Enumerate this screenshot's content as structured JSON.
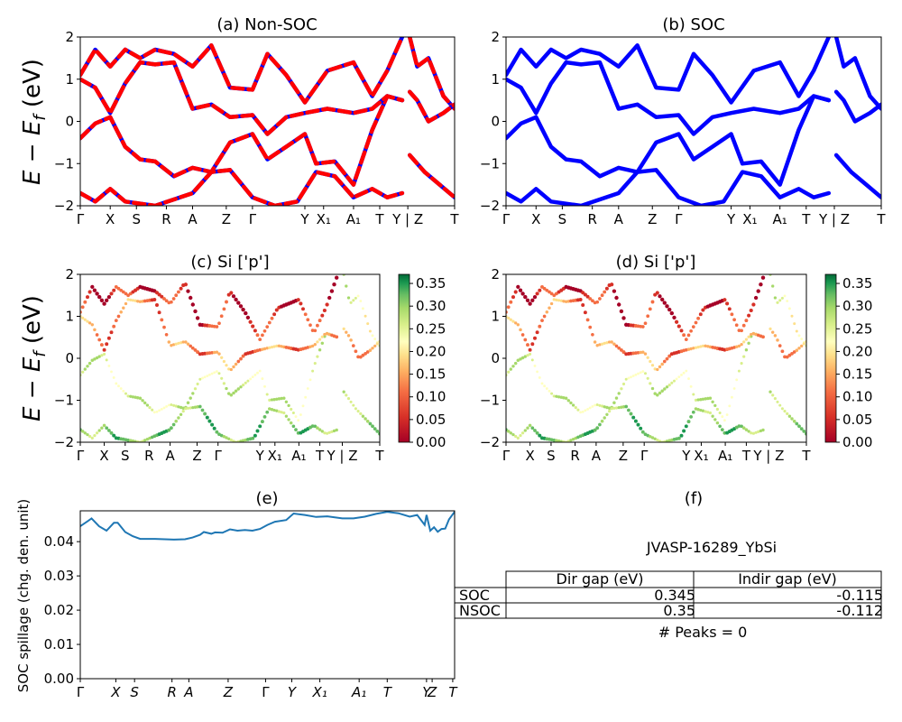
{
  "common": {
    "kpath_a": [
      "Γ",
      "X",
      "S",
      "R",
      "A",
      "Z",
      "Γ",
      "Y",
      "X₁",
      "A₁",
      "T",
      "Y | Z",
      "T"
    ],
    "kpath_c": [
      "Γ",
      "X",
      "S",
      "R",
      "A",
      "Z",
      "Γ",
      "Y",
      "X₁",
      "A₁",
      "T",
      "Y | Z",
      "T"
    ],
    "kpath_e": [
      "Γ",
      "X",
      "S",
      "R",
      "A",
      "Z",
      "Γ",
      "Y",
      "X₁",
      "A₁",
      "T",
      "Y",
      "Z",
      "T"
    ],
    "y_ticks_band": [
      "−2",
      "−1",
      "0",
      "1",
      "2"
    ],
    "colorbar_ticks": [
      "0.00",
      "0.05",
      "0.10",
      "0.15",
      "0.20",
      "0.25",
      "0.30",
      "0.35"
    ],
    "ylabel_band": "E − E_f (eV)"
  },
  "panel_a": {
    "title": "(a) Non-SOC"
  },
  "panel_b": {
    "title": "(b) SOC"
  },
  "panel_c": {
    "title": "(c)  Si ['p']"
  },
  "panel_d": {
    "title": "(d) Si ['p']"
  },
  "panel_e": {
    "title": "(e)",
    "ylabel": "SOC spillage (chg. den. unit)",
    "y_ticks": [
      "0.00",
      "0.01",
      "0.02",
      "0.03",
      "0.04"
    ]
  },
  "panel_f": {
    "title": "(f)",
    "material": "JVASP-16289_YbSi",
    "col_headers": [
      "Dir gap (eV)",
      "Indir gap (eV)"
    ],
    "rows": [
      {
        "label": "SOC",
        "dir": "0.345",
        "indir": "-0.115"
      },
      {
        "label": "NSOC",
        "dir": "0.35",
        "indir": "-0.112"
      }
    ],
    "peaks": "# Peaks = 0"
  },
  "chart_data": [
    {
      "type": "line",
      "panel": "a",
      "title": "(a) Non-SOC",
      "ylabel": "E − E_f (eV)",
      "ylim": [
        -2,
        2
      ],
      "x_tick_labels": [
        "Γ",
        "X",
        "S",
        "R",
        "A",
        "Z",
        "Γ",
        "Y",
        "X₁",
        "A₁",
        "T",
        "Y | Z",
        "T"
      ],
      "x_tick_positions": [
        0,
        0.08,
        0.15,
        0.23,
        0.3,
        0.39,
        0.46,
        0.6,
        0.65,
        0.73,
        0.8,
        0.875,
        1.0
      ],
      "series_style": "red solid with blue dashes (spin up/down overlap)",
      "series": [
        {
          "values": [
            [
              0,
              -0.4
            ],
            [
              0.04,
              -0.05
            ],
            [
              0.08,
              0.1
            ],
            [
              0.12,
              -0.6
            ],
            [
              0.16,
              -0.9
            ],
            [
              0.2,
              -0.95
            ],
            [
              0.25,
              -1.3
            ],
            [
              0.3,
              -1.1
            ],
            [
              0.35,
              -1.2
            ],
            [
              0.4,
              -0.5
            ],
            [
              0.46,
              -0.3
            ],
            [
              0.5,
              -0.9
            ],
            [
              0.55,
              -0.6
            ],
            [
              0.6,
              -0.3
            ],
            [
              0.63,
              -1.0
            ],
            [
              0.68,
              -0.95
            ],
            [
              0.73,
              -1.5
            ],
            [
              0.78,
              -0.2
            ],
            [
              0.82,
              0.6
            ],
            [
              0.86,
              0.5
            ]
          ]
        },
        {
          "values": [
            [
              0,
              1.0
            ],
            [
              0.04,
              0.8
            ],
            [
              0.08,
              0.2
            ],
            [
              0.12,
              0.9
            ],
            [
              0.16,
              1.4
            ],
            [
              0.2,
              1.35
            ],
            [
              0.25,
              1.4
            ],
            [
              0.3,
              0.3
            ],
            [
              0.35,
              0.4
            ],
            [
              0.4,
              0.1
            ],
            [
              0.46,
              0.15
            ],
            [
              0.5,
              -0.3
            ],
            [
              0.55,
              0.1
            ],
            [
              0.6,
              0.2
            ],
            [
              0.66,
              0.3
            ],
            [
              0.73,
              0.2
            ],
            [
              0.78,
              0.3
            ],
            [
              0.82,
              0.6
            ],
            [
              0.86,
              0.5
            ]
          ]
        },
        {
          "values": [
            [
              0,
              1.1
            ],
            [
              0.04,
              1.7
            ],
            [
              0.08,
              1.3
            ],
            [
              0.12,
              1.7
            ],
            [
              0.16,
              1.5
            ],
            [
              0.2,
              1.7
            ],
            [
              0.25,
              1.6
            ],
            [
              0.3,
              1.3
            ],
            [
              0.35,
              1.8
            ],
            [
              0.4,
              0.8
            ],
            [
              0.46,
              0.75
            ],
            [
              0.5,
              1.6
            ],
            [
              0.55,
              1.1
            ],
            [
              0.6,
              0.45
            ],
            [
              0.66,
              1.2
            ],
            [
              0.73,
              1.4
            ],
            [
              0.78,
              0.6
            ],
            [
              0.82,
              1.2
            ],
            [
              0.86,
              2.0
            ]
          ]
        },
        {
          "values": [
            [
              0,
              -1.7
            ],
            [
              0.04,
              -1.9
            ],
            [
              0.08,
              -1.6
            ],
            [
              0.12,
              -1.9
            ],
            [
              0.2,
              -2.0
            ],
            [
              0.3,
              -1.7
            ],
            [
              0.35,
              -1.2
            ],
            [
              0.4,
              -1.15
            ],
            [
              0.46,
              -1.8
            ],
            [
              0.52,
              -2.0
            ],
            [
              0.58,
              -1.9
            ],
            [
              0.63,
              -1.2
            ],
            [
              0.68,
              -1.3
            ],
            [
              0.73,
              -1.8
            ],
            [
              0.78,
              -1.6
            ],
            [
              0.82,
              -1.8
            ],
            [
              0.86,
              -1.7
            ]
          ]
        },
        {
          "values": [
            [
              0.88,
              2.0
            ],
            [
              0.9,
              1.3
            ],
            [
              0.93,
              1.5
            ],
            [
              0.97,
              0.6
            ],
            [
              1.0,
              0.3
            ]
          ]
        },
        {
          "values": [
            [
              0.88,
              0.7
            ],
            [
              0.9,
              0.5
            ],
            [
              0.93,
              0.0
            ],
            [
              0.97,
              0.2
            ],
            [
              1.0,
              0.4
            ]
          ]
        },
        {
          "values": [
            [
              0.88,
              -0.8
            ],
            [
              0.92,
              -1.2
            ],
            [
              0.96,
              -1.5
            ],
            [
              1.0,
              -1.8
            ]
          ]
        }
      ]
    },
    {
      "type": "line",
      "panel": "b",
      "title": "(b) SOC",
      "ylim": [
        -2,
        2
      ],
      "x_tick_labels": [
        "Γ",
        "X",
        "S",
        "R",
        "A",
        "Z",
        "Γ",
        "Y",
        "X₁",
        "A₁",
        "T",
        "Y | Z",
        "T"
      ],
      "series_style": "blue solid",
      "series_ref": "same band shapes as panel a"
    },
    {
      "type": "scatter",
      "panel": "c",
      "title": "(c)  Si ['p']",
      "ylabel": "E − E_f (eV)",
      "ylim": [
        -2,
        2
      ],
      "colorbar": {
        "cmap": "RdYlGn",
        "range": [
          0,
          0.37
        ]
      },
      "x_tick_labels": [
        "Γ",
        "X",
        "S",
        "R",
        "A",
        "Z",
        "Γ",
        "Y",
        "X₁",
        "A₁",
        "T",
        "Y | Z",
        "T"
      ]
    },
    {
      "type": "scatter",
      "panel": "d",
      "title": "(d) Si ['p']",
      "ylim": [
        -2,
        2
      ],
      "colorbar": {
        "cmap": "RdYlGn",
        "range": [
          0,
          0.37
        ]
      },
      "x_tick_labels": [
        "Γ",
        "X",
        "S",
        "R",
        "A",
        "Z",
        "Γ",
        "Y",
        "X₁",
        "A₁",
        "T",
        "Y | Z",
        "T"
      ]
    },
    {
      "type": "line",
      "panel": "e",
      "title": "(e)",
      "ylabel": "SOC spillage (chg. den. unit)",
      "ylim": [
        0,
        0.049
      ],
      "x_tick_labels": [
        "Γ",
        "X",
        "S",
        "R",
        "A",
        "Z",
        "Γ",
        "Y",
        "X₁",
        "A₁",
        "T",
        "Y",
        "Z",
        "T"
      ],
      "x_tick_positions": [
        0,
        0.095,
        0.145,
        0.245,
        0.29,
        0.395,
        0.495,
        0.565,
        0.64,
        0.745,
        0.82,
        0.925,
        0.94,
        0.995
      ],
      "values": [
        [
          0,
          0.0445
        ],
        [
          0.02,
          0.046
        ],
        [
          0.03,
          0.0468
        ],
        [
          0.05,
          0.0445
        ],
        [
          0.07,
          0.0432
        ],
        [
          0.09,
          0.0455
        ],
        [
          0.1,
          0.0455
        ],
        [
          0.12,
          0.0428
        ],
        [
          0.14,
          0.0416
        ],
        [
          0.16,
          0.0408
        ],
        [
          0.2,
          0.0408
        ],
        [
          0.25,
          0.0406
        ],
        [
          0.28,
          0.0407
        ],
        [
          0.3,
          0.0412
        ],
        [
          0.32,
          0.042
        ],
        [
          0.33,
          0.0428
        ],
        [
          0.35,
          0.0423
        ],
        [
          0.36,
          0.0427
        ],
        [
          0.38,
          0.0426
        ],
        [
          0.4,
          0.0436
        ],
        [
          0.42,
          0.0432
        ],
        [
          0.44,
          0.0434
        ],
        [
          0.46,
          0.0432
        ],
        [
          0.48,
          0.0437
        ],
        [
          0.5,
          0.0449
        ],
        [
          0.52,
          0.0458
        ],
        [
          0.55,
          0.0463
        ],
        [
          0.57,
          0.0482
        ],
        [
          0.6,
          0.0478
        ],
        [
          0.63,
          0.0472
        ],
        [
          0.66,
          0.0474
        ],
        [
          0.7,
          0.0468
        ],
        [
          0.73,
          0.0468
        ],
        [
          0.76,
          0.0473
        ],
        [
          0.79,
          0.0481
        ],
        [
          0.82,
          0.0487
        ],
        [
          0.85,
          0.0483
        ],
        [
          0.88,
          0.0473
        ],
        [
          0.9,
          0.0478
        ],
        [
          0.92,
          0.0449
        ],
        [
          0.925,
          0.0478
        ],
        [
          0.935,
          0.0432
        ],
        [
          0.945,
          0.0442
        ],
        [
          0.955,
          0.0429
        ],
        [
          0.965,
          0.0437
        ],
        [
          0.975,
          0.0438
        ],
        [
          0.985,
          0.0465
        ],
        [
          1.0,
          0.0487
        ]
      ]
    }
  ]
}
